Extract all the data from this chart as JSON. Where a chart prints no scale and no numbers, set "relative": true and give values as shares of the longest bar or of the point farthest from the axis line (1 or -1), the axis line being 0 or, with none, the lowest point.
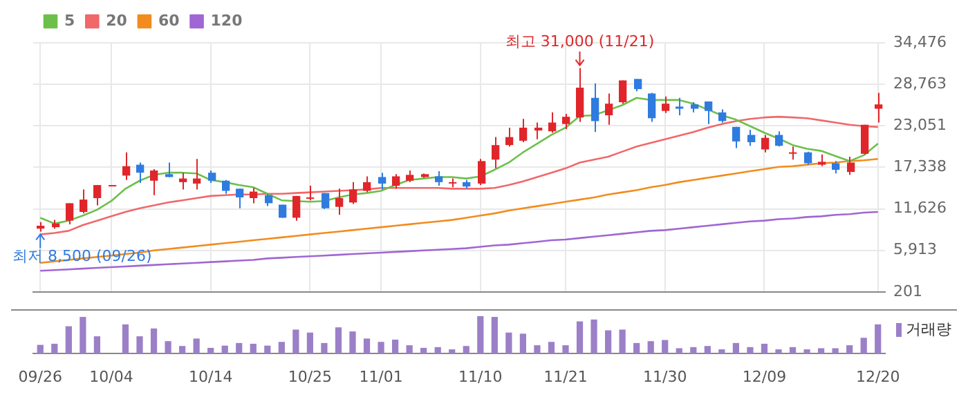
{
  "chart_data": [
    {
      "type": "candlestick",
      "categories": [
        null,
        null,
        null,
        null,
        null,
        null,
        null,
        null,
        null,
        null,
        null,
        null,
        null,
        null,
        null,
        null,
        null,
        null,
        null,
        null,
        null,
        null,
        null,
        null,
        null,
        null,
        null,
        null,
        null,
        null,
        null,
        null,
        null,
        null,
        null,
        null,
        null,
        null,
        null,
        null,
        null,
        null,
        null,
        null,
        null,
        null,
        null,
        null,
        null,
        null,
        null,
        null,
        null,
        null,
        null,
        null,
        null,
        null,
        null,
        null
      ],
      "ohlc": [
        [
          8900,
          9800,
          8500,
          9300
        ],
        [
          9100,
          10100,
          8900,
          9600
        ],
        [
          10000,
          12400,
          9500,
          12400
        ],
        [
          11200,
          14300,
          11000,
          12900
        ],
        [
          13100,
          14900,
          12100,
          14900
        ],
        [
          14900,
          14900,
          14900,
          14900
        ],
        [
          16200,
          19400,
          15600,
          17500
        ],
        [
          17700,
          18000,
          15200,
          16600
        ],
        [
          15500,
          17100,
          13500,
          16900
        ],
        [
          16400,
          18000,
          16000,
          16000
        ],
        [
          15300,
          16600,
          14300,
          15800
        ],
        [
          15100,
          18500,
          14300,
          15800
        ],
        [
          16600,
          16900,
          15200,
          15500
        ],
        [
          15500,
          15600,
          13700,
          14100
        ],
        [
          14400,
          14400,
          11700,
          13200
        ],
        [
          13100,
          14500,
          12400,
          14000
        ],
        [
          13500,
          13700,
          12000,
          12400
        ],
        [
          12200,
          12200,
          10400,
          10400
        ],
        [
          10400,
          13400,
          10000,
          13400
        ],
        [
          13100,
          14800,
          12800,
          13200
        ],
        [
          13800,
          13800,
          11600,
          11700
        ],
        [
          11900,
          14400,
          10800,
          13100
        ],
        [
          12500,
          15300,
          12300,
          14300
        ],
        [
          14100,
          16100,
          13900,
          15300
        ],
        [
          16000,
          16600,
          14300,
          15100
        ],
        [
          14800,
          16400,
          14400,
          16100
        ],
        [
          15500,
          16900,
          15300,
          16300
        ],
        [
          16000,
          16500,
          15900,
          16400
        ],
        [
          16100,
          16800,
          14800,
          15300
        ],
        [
          15200,
          15800,
          14600,
          15300
        ],
        [
          15300,
          15600,
          14400,
          14700
        ],
        [
          15100,
          18500,
          14900,
          18200
        ],
        [
          18400,
          21500,
          17200,
          20400
        ],
        [
          20400,
          22800,
          20200,
          21500
        ],
        [
          21000,
          24000,
          20800,
          22800
        ],
        [
          22400,
          23500,
          21200,
          22800
        ],
        [
          22300,
          24900,
          22100,
          23500
        ],
        [
          23300,
          24700,
          22600,
          24300
        ],
        [
          24200,
          31000,
          23600,
          28300
        ],
        [
          26900,
          28900,
          22200,
          23700
        ],
        [
          24500,
          27500,
          23200,
          26100
        ],
        [
          26300,
          29300,
          26100,
          29300
        ],
        [
          29500,
          29500,
          27800,
          28100
        ],
        [
          27500,
          27600,
          23600,
          24100
        ],
        [
          25100,
          27100,
          24800,
          26100
        ],
        [
          25700,
          26900,
          24500,
          25400
        ],
        [
          26000,
          26300,
          24900,
          25400
        ],
        [
          26400,
          26400,
          23300,
          25100
        ],
        [
          24900,
          25300,
          23500,
          23700
        ],
        [
          22900,
          22900,
          20000,
          20900
        ],
        [
          21800,
          22500,
          20300,
          20800
        ],
        [
          19800,
          21800,
          19400,
          21400
        ],
        [
          21800,
          22300,
          20200,
          20300
        ],
        [
          19300,
          20200,
          18400,
          19400
        ],
        [
          19400,
          19500,
          17700,
          17900
        ],
        [
          17700,
          19100,
          17500,
          18100
        ],
        [
          17900,
          18200,
          16500,
          17000
        ],
        [
          16700,
          18800,
          16300,
          18000
        ],
        [
          19200,
          23200,
          19100,
          23200
        ],
        [
          25400,
          27600,
          23500,
          26000
        ]
      ],
      "colors": [
        "#e0262a",
        "#e0262a",
        "#e0262a",
        "#e0262a",
        "#e0262a",
        "#e0262a",
        "#e0262a",
        "#2f7be0",
        "#e0262a",
        "#2f7be0",
        "#e0262a",
        "#e0262a",
        "#2f7be0",
        "#2f7be0",
        "#2f7be0",
        "#e0262a",
        "#2f7be0",
        "#2f7be0",
        "#e0262a",
        "#e0262a",
        "#2f7be0",
        "#e0262a",
        "#e0262a",
        "#e0262a",
        "#2f7be0",
        "#e0262a",
        "#e0262a",
        "#e0262a",
        "#2f7be0",
        "#e0262a",
        "#2f7be0",
        "#e0262a",
        "#e0262a",
        "#e0262a",
        "#e0262a",
        "#e0262a",
        "#e0262a",
        "#e0262a",
        "#e0262a",
        "#2f7be0",
        "#e0262a",
        "#e0262a",
        "#2f7be0",
        "#2f7be0",
        "#e0262a",
        "#2f7be0",
        "#2f7be0",
        "#2f7be0",
        "#2f7be0",
        "#2f7be0",
        "#2f7be0",
        "#e0262a",
        "#2f7be0",
        "#e0262a",
        "#2f7be0",
        "#e0262a",
        "#2f7be0",
        "#e0262a",
        "#e0262a",
        "#e0262a"
      ],
      "series": [
        {
          "type": "line",
          "name": "5",
          "color": "#6cc04a",
          "values": [
            10400,
            9600,
            10000,
            10700,
            11500,
            12700,
            14400,
            15500,
            16300,
            16600,
            16600,
            16500,
            15600,
            15300,
            14900,
            14600,
            13700,
            12800,
            12700,
            12600,
            12700,
            13200,
            13600,
            13800,
            14100,
            14900,
            15600,
            15800,
            16000,
            16000,
            15800,
            16100,
            17000,
            18000,
            19400,
            20600,
            21800,
            22800,
            24400,
            24500,
            25200,
            25900,
            26900,
            26600,
            26600,
            26600,
            26100,
            25300,
            24500,
            23900,
            23000,
            22100,
            21300,
            20400,
            19900,
            19600,
            18900,
            18200,
            19000,
            20600
          ]
        },
        {
          "type": "line",
          "name": "20",
          "color": "#f0686a",
          "values": [
            8100,
            8300,
            8600,
            9400,
            10000,
            10600,
            11200,
            11700,
            12100,
            12500,
            12800,
            13100,
            13400,
            13500,
            13600,
            13600,
            13700,
            13700,
            13800,
            13900,
            14000,
            14100,
            14200,
            14300,
            14500,
            14500,
            14500,
            14500,
            14500,
            14400,
            14400,
            14400,
            14500,
            14900,
            15400,
            16000,
            16600,
            17200,
            18000,
            18400,
            18800,
            19500,
            20200,
            20700,
            21200,
            21700,
            22200,
            22800,
            23300,
            23700,
            24000,
            24200,
            24300,
            24200,
            24100,
            23800,
            23500,
            23200,
            23000,
            22900
          ]
        },
        {
          "type": "line",
          "name": "60",
          "color": "#f28c1e",
          "values": [
            4200,
            4400,
            4600,
            4800,
            5000,
            5200,
            5400,
            5600,
            5900,
            6100,
            6300,
            6500,
            6700,
            6900,
            7100,
            7300,
            7500,
            7700,
            7900,
            8100,
            8300,
            8500,
            8700,
            8900,
            9100,
            9300,
            9500,
            9700,
            9900,
            10100,
            10400,
            10700,
            11000,
            11400,
            11700,
            12000,
            12300,
            12600,
            12900,
            13200,
            13600,
            13900,
            14200,
            14600,
            14900,
            15300,
            15600,
            15900,
            16200,
            16500,
            16800,
            17100,
            17400,
            17500,
            17700,
            17900,
            18000,
            18200,
            18300,
            18500
          ]
        },
        {
          "type": "line",
          "name": "120",
          "color": "#a066d3",
          "values": [
            3100,
            3200,
            3300,
            3400,
            3500,
            3600,
            3700,
            3800,
            3900,
            4000,
            4100,
            4200,
            4300,
            4400,
            4500,
            4600,
            4800,
            4900,
            5000,
            5100,
            5200,
            5300,
            5400,
            5500,
            5600,
            5700,
            5800,
            5900,
            6000,
            6100,
            6200,
            6400,
            6600,
            6700,
            6900,
            7100,
            7300,
            7400,
            7600,
            7800,
            8000,
            8200,
            8400,
            8600,
            8700,
            8900,
            9100,
            9300,
            9500,
            9700,
            9900,
            10000,
            10200,
            10300,
            10500,
            10600,
            10800,
            10900,
            11100,
            11200
          ]
        }
      ],
      "ylim": [
        201,
        34476
      ],
      "yticks": [
        201,
        {
          "value": 5913,
          "label": "5,913"
        },
        {
          "value": 11626,
          "label": "11,626"
        },
        {
          "value": 17338,
          "label": "17,338"
        },
        {
          "value": 23051,
          "label": "23,051"
        },
        {
          "value": 28763,
          "label": "28,763"
        },
        {
          "value": 34476,
          "label": "34,476"
        }
      ],
      "annotations": [
        "최고 31,000 (11/21)",
        "최저 8,500 (09/26)"
      ],
      "grid": true,
      "legend": "top left",
      "tick_labels": "y"
    },
    {
      "type": "bar",
      "relative": true,
      "categories": [
        "09/26",
        null,
        null,
        null,
        null,
        "10/04",
        null,
        null,
        null,
        null,
        null,
        null,
        "10/14",
        null,
        null,
        null,
        null,
        null,
        null,
        "10/25",
        null,
        null,
        null,
        null,
        "11/01",
        null,
        null,
        null,
        null,
        null,
        null,
        "11/10",
        null,
        null,
        null,
        null,
        null,
        "11/21",
        null,
        null,
        null,
        null,
        null,
        null,
        "11/30",
        null,
        null,
        null,
        null,
        null,
        null,
        "12/09",
        null,
        null,
        null,
        null,
        null,
        null,
        null,
        "12/20"
      ],
      "series": [
        {
          "name": "거래량",
          "color": "#9b80c8",
          "values": [
            0.23,
            0.26,
            0.73,
            0.98,
            0.46,
            0,
            0.78,
            0.46,
            0.67,
            0.33,
            0.2,
            0.4,
            0.15,
            0.21,
            0.28,
            0.26,
            0.21,
            0.31,
            0.64,
            0.56,
            0.28,
            0.7,
            0.59,
            0.4,
            0.31,
            0.37,
            0.22,
            0.15,
            0.17,
            0.11,
            0.2,
            1,
            0.98,
            0.56,
            0.53,
            0.22,
            0.31,
            0.22,
            0.86,
            0.91,
            0.62,
            0.64,
            0.28,
            0.33,
            0.36,
            0.14,
            0.17,
            0.2,
            0.11,
            0.28,
            0.17,
            0.26,
            0.11,
            0.17,
            0.11,
            0.14,
            0.14,
            0.22,
            0.42,
            0.78
          ]
        }
      ],
      "legend": "top right"
    }
  ]
}
